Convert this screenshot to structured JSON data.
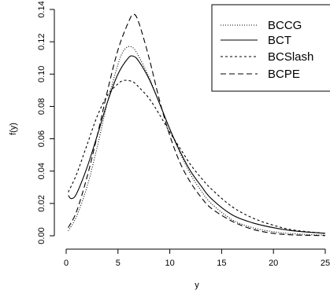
{
  "chart_data": {
    "type": "line",
    "title": "",
    "xlabel": "y",
    "ylabel": "f(y)",
    "xlim": [
      0,
      25
    ],
    "ylim": [
      0,
      0.14
    ],
    "x_ticks": [
      0,
      5,
      10,
      15,
      20,
      25
    ],
    "x_tick_labels": [
      "0",
      "5",
      "10",
      "15",
      "20",
      "25"
    ],
    "y_ticks": [
      0,
      0.02,
      0.04,
      0.06,
      0.08,
      0.1,
      0.12,
      0.14
    ],
    "y_tick_labels": [
      "0.00",
      "0.02",
      "0.04",
      "0.06",
      "0.08",
      "0.10",
      "0.12",
      "0.14"
    ],
    "grid": false,
    "legend_position": "top-right",
    "series": [
      {
        "name": "BCCG",
        "line_style": "dotted",
        "color": "#000000",
        "x": [
          0.2,
          1,
          2,
          3,
          4,
          5,
          5.5,
          6,
          6.5,
          7,
          8,
          9,
          10,
          11,
          12,
          13,
          14,
          16,
          18,
          20,
          22,
          25
        ],
        "y": [
          0.003,
          0.012,
          0.03,
          0.055,
          0.083,
          0.106,
          0.114,
          0.117,
          0.116,
          0.111,
          0.098,
          0.082,
          0.066,
          0.051,
          0.038,
          0.028,
          0.02,
          0.01,
          0.005,
          0.0025,
          0.0012,
          0.0004
        ]
      },
      {
        "name": "BCT",
        "line_style": "solid",
        "color": "#000000",
        "x": [
          0.2,
          0.5,
          1,
          2,
          3,
          4,
          5,
          6,
          6.5,
          7,
          8,
          9,
          10,
          11,
          12,
          13,
          14,
          16,
          18,
          20,
          22,
          25
        ],
        "y": [
          0.025,
          0.023,
          0.026,
          0.042,
          0.062,
          0.083,
          0.1,
          0.11,
          0.111,
          0.108,
          0.097,
          0.082,
          0.066,
          0.052,
          0.04,
          0.031,
          0.023,
          0.013,
          0.008,
          0.005,
          0.003,
          0.0015
        ]
      },
      {
        "name": "BCSlash",
        "line_style": "dashed",
        "color": "#000000",
        "x": [
          0.2,
          1,
          2,
          3,
          4,
          5,
          5.5,
          6,
          6.5,
          7,
          8,
          9,
          10,
          11,
          12,
          13,
          14,
          16,
          18,
          20,
          22,
          25
        ],
        "y": [
          0.027,
          0.038,
          0.056,
          0.074,
          0.087,
          0.094,
          0.096,
          0.096,
          0.095,
          0.092,
          0.085,
          0.075,
          0.064,
          0.054,
          0.044,
          0.036,
          0.029,
          0.018,
          0.011,
          0.0065,
          0.0035,
          0.0015
        ]
      },
      {
        "name": "BCPE",
        "line_style": "longdash",
        "color": "#000000",
        "x": [
          0.2,
          1,
          2,
          3,
          4,
          5,
          6,
          6.5,
          7,
          8,
          9,
          10,
          11,
          12,
          13,
          14,
          16,
          18,
          20,
          22,
          25
        ],
        "y": [
          0.005,
          0.015,
          0.036,
          0.062,
          0.09,
          0.115,
          0.132,
          0.137,
          0.132,
          0.11,
          0.084,
          0.062,
          0.045,
          0.033,
          0.024,
          0.017,
          0.009,
          0.004,
          0.0015,
          0.0005,
          0.0001
        ]
      }
    ]
  }
}
